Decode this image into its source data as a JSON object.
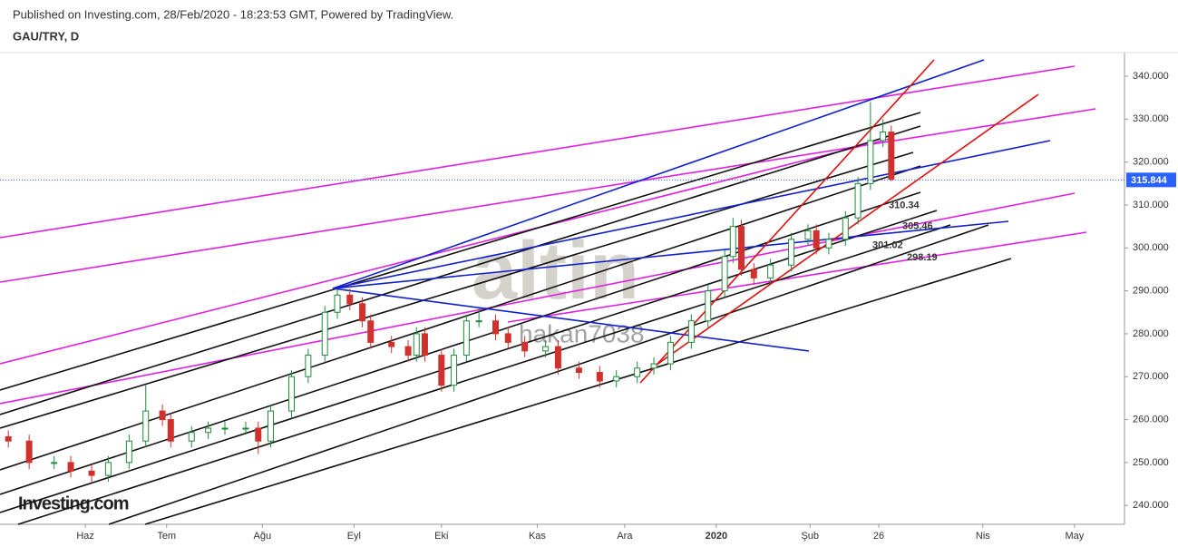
{
  "chart_data": {
    "type": "candlestick",
    "title": "Published on Investing.com, 28/Feb/2020 - 18:23:53 GMT, Powered by TradingView.",
    "subtitle": "GAU/TRY, D",
    "watermark": "hakan7038",
    "logo_text": "altin",
    "brand": "Investing.com",
    "up_color": "#1f8a3c",
    "down_color": "#d0312d",
    "x": [
      2,
      7,
      13,
      17,
      22,
      26,
      31,
      35,
      39,
      41,
      46,
      50,
      54,
      59,
      62,
      65,
      70,
      74,
      78,
      81,
      84,
      87,
      89,
      94,
      98,
      100,
      102,
      106,
      109,
      112,
      115,
      119,
      122,
      126,
      131,
      134,
      139,
      144,
      148,
      153,
      157,
      161,
      166,
      170,
      174,
      176,
      178,
      181,
      185,
      190,
      194,
      196,
      199,
      203,
      206,
      209,
      212,
      214
    ],
    "open": [
      256,
      255,
      250,
      250,
      248,
      247,
      250,
      255,
      262,
      260,
      255,
      257,
      258,
      258,
      258,
      255,
      262,
      270,
      275,
      285,
      289,
      287,
      283,
      278,
      277,
      275,
      280,
      275,
      268,
      275,
      283,
      283,
      280,
      278,
      276,
      277,
      272,
      271,
      269,
      270,
      272,
      273,
      278,
      283,
      290,
      298,
      305,
      295,
      293,
      296,
      302,
      304,
      300,
      302,
      307,
      315,
      325,
      327
    ],
    "high": [
      257.5,
      256.5,
      251.5,
      251.5,
      249.5,
      251.5,
      256.5,
      268,
      263.5,
      261.5,
      258.5,
      259.5,
      259.5,
      259.5,
      259.5,
      263.5,
      271.5,
      276.5,
      286.5,
      290.5,
      290.5,
      288.5,
      284.5,
      279.5,
      278.5,
      281.5,
      281.5,
      276.5,
      276.5,
      284.5,
      286,
      284.5,
      281.5,
      279.5,
      278.5,
      278.5,
      273.5,
      272.5,
      271.5,
      273.5,
      274.5,
      279.5,
      284.5,
      291.5,
      299.5,
      307,
      306.5,
      296.5,
      297.5,
      303.5,
      305.5,
      305.5,
      303.5,
      308.5,
      316.5,
      334,
      330,
      328.5
    ],
    "low": [
      253.5,
      248.5,
      248.5,
      246.5,
      245.5,
      245.5,
      248.5,
      253.5,
      258.5,
      253.5,
      253.5,
      255.5,
      256.5,
      256.5,
      252,
      253.5,
      260.5,
      268.5,
      273.5,
      283.5,
      285.5,
      281.5,
      276.5,
      275.5,
      273.5,
      273.5,
      273.5,
      266.5,
      266.5,
      273.5,
      281.5,
      278.5,
      276.5,
      274.5,
      274.5,
      270.5,
      269.5,
      267.5,
      267.5,
      268.5,
      270.5,
      271.5,
      276.5,
      281.5,
      288.5,
      296.5,
      293.5,
      291.5,
      291.5,
      294.5,
      300.5,
      298.5,
      298.5,
      300.5,
      305.5,
      313.5,
      323.5,
      315.5
    ],
    "close": [
      255,
      250,
      250,
      248,
      247,
      250,
      255,
      262,
      260,
      255,
      257,
      258,
      258,
      258,
      255,
      262,
      270,
      275,
      285,
      289,
      287,
      283,
      278,
      277,
      275,
      280,
      275,
      268,
      275,
      283,
      283,
      280,
      278,
      276,
      277,
      272,
      271,
      269,
      270,
      272,
      273,
      278,
      283,
      290,
      298,
      305,
      295,
      293,
      296,
      302,
      304,
      300,
      302,
      307,
      315,
      325,
      327,
      316
    ],
    "last_price": 315.844,
    "last_price_color": "#2962ff",
    "annotations": [
      310.34,
      305.46,
      301.02,
      298.19
    ],
    "xlim": [
      0,
      270
    ],
    "ylim": [
      235.6,
      345.5
    ],
    "xticks": [
      {
        "value": 20.5,
        "label": "Haz"
      },
      {
        "value": 40,
        "label": "Tem"
      },
      {
        "value": 63,
        "label": "Ağu"
      },
      {
        "value": 85,
        "label": "Eyl"
      },
      {
        "value": 106,
        "label": "Eki"
      },
      {
        "value": 129,
        "label": "Kas"
      },
      {
        "value": 150,
        "label": "Ara"
      },
      {
        "value": 172,
        "label": "2020"
      },
      {
        "value": 194.5,
        "label": "Şub"
      },
      {
        "value": 211,
        "label": "26"
      },
      {
        "value": 236,
        "label": "Nis"
      },
      {
        "value": 258,
        "label": "May"
      }
    ],
    "yticks": [
      {
        "value": 240,
        "label": "240.000"
      },
      {
        "value": 250,
        "label": "250.000"
      },
      {
        "value": 260,
        "label": "260.000"
      },
      {
        "value": 270,
        "label": "270.000"
      },
      {
        "value": 280,
        "label": "280.000"
      },
      {
        "value": 290,
        "label": "290.000"
      },
      {
        "value": 300,
        "label": "300.000"
      },
      {
        "value": 310,
        "label": "310.000"
      },
      {
        "value": 320,
        "label": "320.000"
      },
      {
        "value": 330,
        "label": "330.000"
      },
      {
        "value": 340,
        "label": "340.000"
      }
    ]
  }
}
